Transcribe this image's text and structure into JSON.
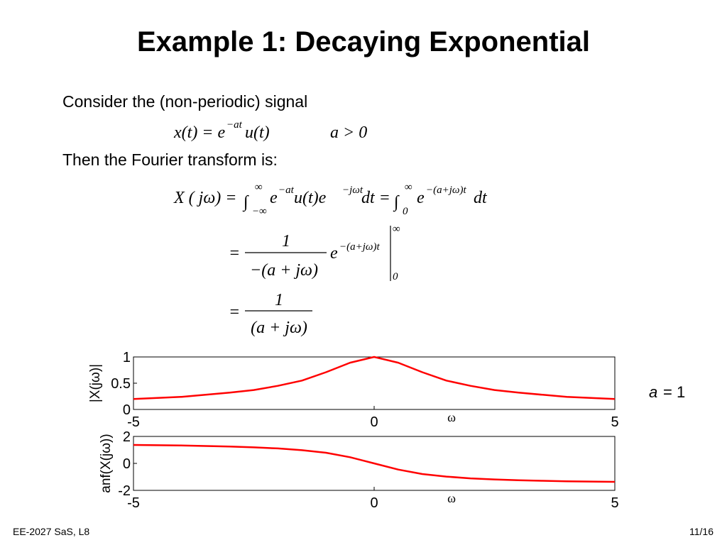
{
  "title": "Example 1: Decaying Exponential",
  "body": [
    "Consider the (non-periodic) signal",
    "Then the Fourier transform is:"
  ],
  "equations": {
    "signal": {
      "lhs": "x(t) = e",
      "exp": "−at",
      "rest": "u(t)",
      "condition": "a > 0"
    },
    "transform": {
      "lhs": "X ( jω) =",
      "int1": "∫",
      "int1_upper": "∞",
      "int1_lower": "−∞",
      "e1": "e",
      "exp1": "−at",
      "mid": "u(t)e",
      "exp2": "−jωt",
      "dt1": "dt =",
      "int2": "∫",
      "int2_upper": "∞",
      "int2_lower": "0",
      "e2": "e",
      "exp3": "−(a+jω)t",
      "dt2": "dt"
    },
    "step2": {
      "eq": "=",
      "numerator": "1",
      "denominator": "−(a + jω)",
      "e": "e",
      "exp": "−(a+jω)t",
      "upper": "∞",
      "lower": "0"
    },
    "step3": {
      "eq": "=",
      "numerator": "1",
      "denominator": "(a + jω)"
    }
  },
  "plots": [
    {
      "type": "line",
      "ylabel": "|X(jω)|",
      "xlabel": "ω",
      "color": "#ff0000",
      "x": [
        -5,
        -4.5,
        -4,
        -3.5,
        -3,
        -2.5,
        -2,
        -1.5,
        -1,
        -0.5,
        0,
        0.5,
        1,
        1.5,
        2,
        2.5,
        3,
        3.5,
        4,
        4.5,
        5
      ],
      "values": [
        0.2,
        0.22,
        0.24,
        0.28,
        0.32,
        0.37,
        0.45,
        0.55,
        0.71,
        0.89,
        1,
        0.89,
        0.71,
        0.55,
        0.45,
        0.37,
        0.32,
        0.28,
        0.24,
        0.22,
        0.2
      ],
      "xlim": [
        -5,
        5
      ],
      "ylim": [
        0,
        1
      ],
      "xticks": [
        -5,
        0,
        5
      ],
      "yticks": [
        0,
        0.5,
        1
      ]
    },
    {
      "type": "line",
      "ylabel": "anf(X(jω))",
      "xlabel": "ω",
      "color": "#ff0000",
      "x": [
        -5,
        -4.5,
        -4,
        -3.5,
        -3,
        -2.5,
        -2,
        -1.5,
        -1,
        -0.5,
        0,
        0.5,
        1,
        1.5,
        2,
        2.5,
        3,
        3.5,
        4,
        4.5,
        5
      ],
      "values": [
        1.37,
        1.35,
        1.33,
        1.29,
        1.25,
        1.19,
        1.11,
        0.98,
        0.79,
        0.46,
        0,
        -0.46,
        -0.79,
        -0.98,
        -1.11,
        -1.19,
        -1.25,
        -1.29,
        -1.33,
        -1.35,
        -1.37
      ],
      "xlim": [
        -5,
        5
      ],
      "ylim": [
        -2,
        2
      ],
      "xticks": [
        -5,
        0,
        5
      ],
      "yticks": [
        -2,
        0,
        2
      ]
    }
  ],
  "annotation": {
    "name": "a",
    "rest": "= 1"
  },
  "footer": {
    "left": "EE-2027 SaS, L8",
    "right": "11/16"
  }
}
